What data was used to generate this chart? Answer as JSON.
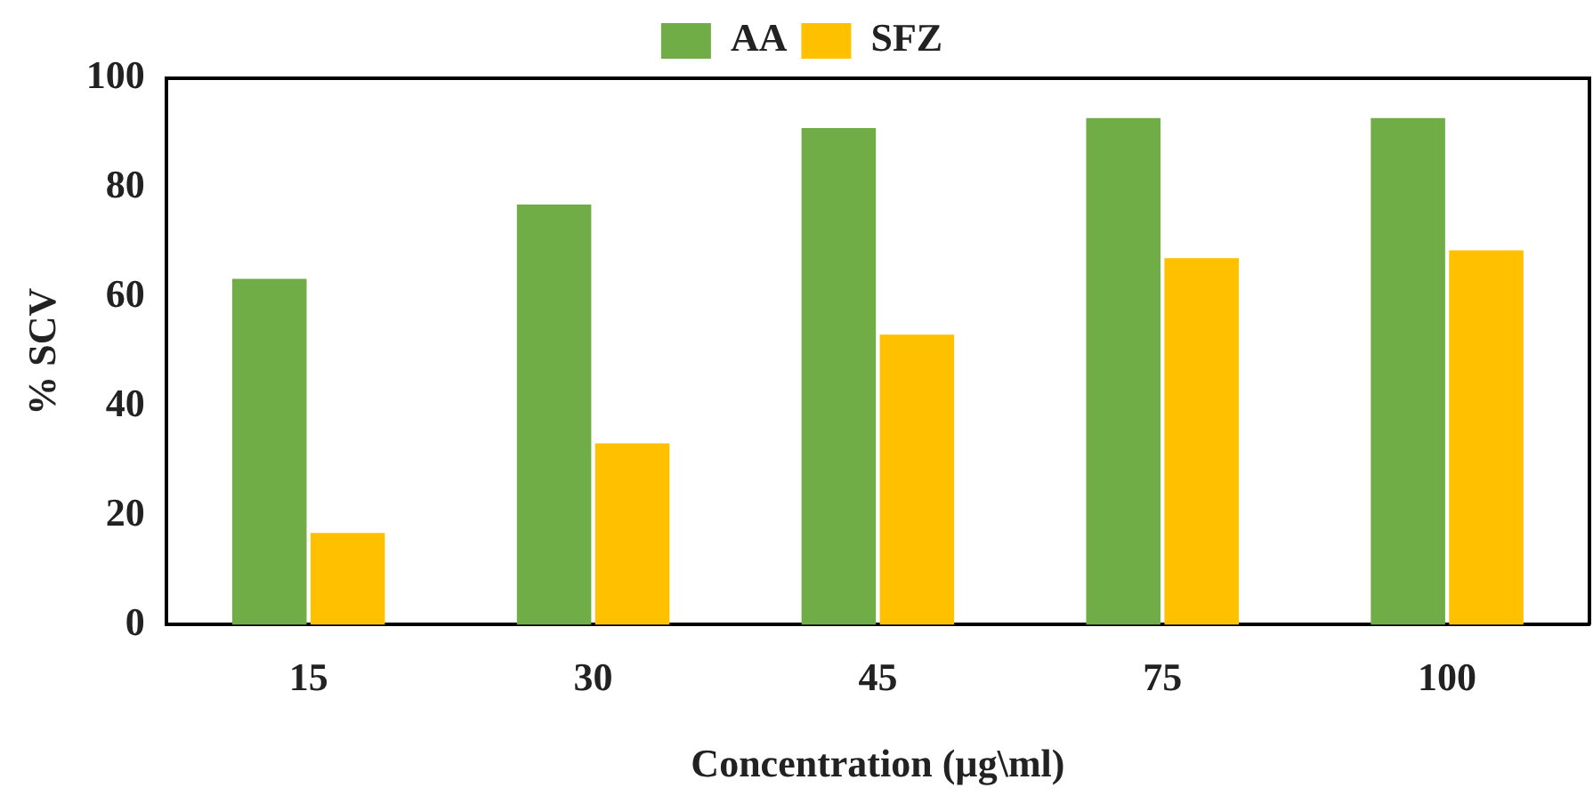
{
  "chart_data": {
    "type": "bar",
    "xlabel": "Concentration (µg\\ml)",
    "ylabel": "% SCV",
    "categories": [
      "15",
      "30",
      "45",
      "75",
      "100"
    ],
    "series": [
      {
        "name": "AA",
        "color": "#70ad47",
        "values": [
          63.3,
          76.9,
          90.9,
          92.7,
          92.7
        ]
      },
      {
        "name": "SFZ",
        "color": "#ffc000",
        "values": [
          16.8,
          33.2,
          53.1,
          67.1,
          68.5
        ]
      }
    ],
    "ylim": [
      0,
      100
    ],
    "yticks": [
      0,
      20,
      40,
      60,
      80,
      100
    ],
    "grid": false,
    "legend": "top"
  }
}
